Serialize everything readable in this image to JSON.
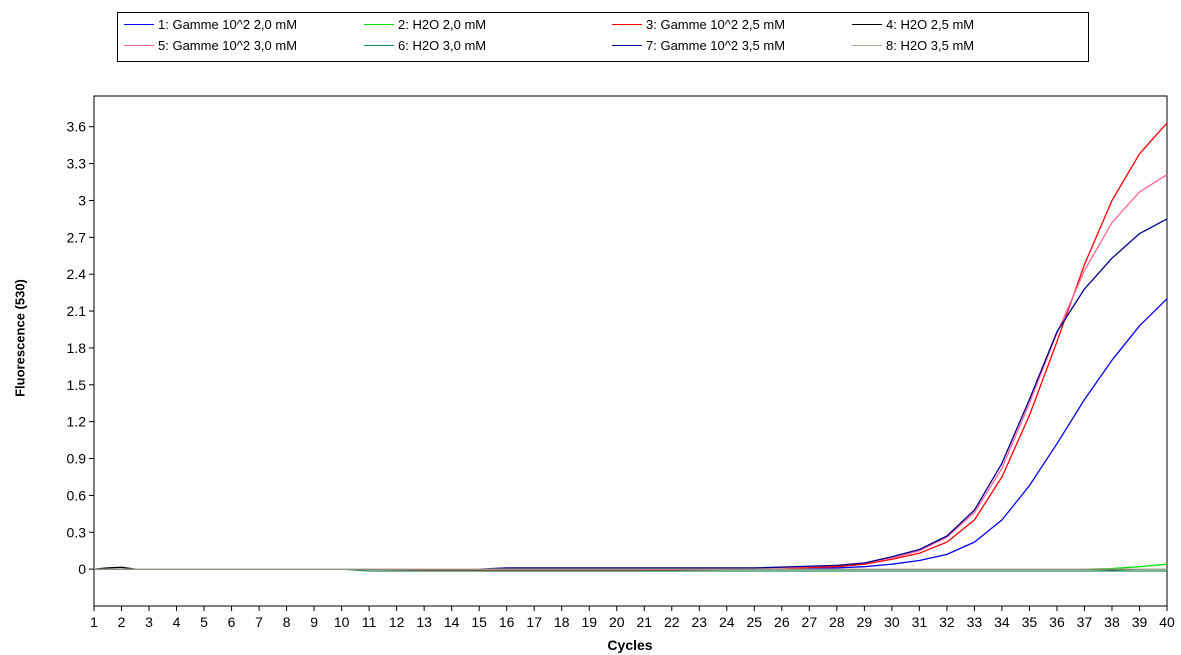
{
  "chart_data": {
    "type": "line",
    "xlabel": "Cycles",
    "ylabel": "Fluorescence (530)",
    "xlim": [
      1,
      40
    ],
    "ylim": [
      -0.3,
      3.85
    ],
    "x_ticks": [
      1,
      2,
      3,
      4,
      5,
      6,
      7,
      8,
      9,
      10,
      11,
      12,
      13,
      14,
      15,
      16,
      17,
      18,
      19,
      20,
      21,
      22,
      23,
      24,
      25,
      26,
      27,
      28,
      29,
      30,
      31,
      32,
      33,
      34,
      35,
      36,
      37,
      38,
      39,
      40
    ],
    "y_ticks": [
      0,
      0.3,
      0.6,
      0.9,
      1.2,
      1.5,
      1.8,
      2.1,
      2.4,
      2.7,
      3,
      3.3,
      3.6
    ],
    "y_tick_labels": [
      "0",
      "0.3",
      "0.6",
      "0.9",
      "1.2",
      "1.5",
      "1.8",
      "2.1",
      "2.4",
      "2.7",
      "3",
      "3.3",
      "3.6"
    ],
    "legend_position": "top",
    "series": [
      {
        "name": "1: Gamme 10^2 2,0 mM",
        "color": "#0000ff",
        "x": [
          1,
          5,
          10,
          15,
          20,
          25,
          28,
          29,
          30,
          31,
          32,
          33,
          34,
          35,
          36,
          37,
          38,
          39,
          40
        ],
        "y": [
          0,
          0,
          0,
          0,
          0,
          0,
          0.01,
          0.02,
          0.04,
          0.07,
          0.12,
          0.22,
          0.4,
          0.68,
          1.02,
          1.38,
          1.7,
          1.98,
          2.2
        ]
      },
      {
        "name": "2: H2O 2,0 mM",
        "color": "#00e000",
        "x": [
          1,
          5,
          10,
          15,
          20,
          25,
          30,
          35,
          37,
          38,
          39,
          40
        ],
        "y": [
          0,
          0,
          0,
          0,
          0,
          0,
          0,
          0,
          0,
          0.005,
          0.02,
          0.04
        ]
      },
      {
        "name": "3: Gamme 10^2 2,5 mM",
        "color": "#ff0000",
        "x": [
          1,
          5,
          10,
          15,
          20,
          25,
          28,
          29,
          30,
          31,
          32,
          33,
          34,
          35,
          36,
          37,
          38,
          39,
          40
        ],
        "y": [
          0,
          0,
          0,
          -0.01,
          -0.01,
          0,
          0.02,
          0.04,
          0.08,
          0.13,
          0.22,
          0.4,
          0.75,
          1.25,
          1.85,
          2.48,
          3.0,
          3.38,
          3.63
        ]
      },
      {
        "name": "4: H2O 2,5 mM",
        "color": "#000000",
        "x": [
          1,
          1.5,
          2,
          2.5,
          5,
          10,
          20,
          30,
          37,
          38,
          39,
          40
        ],
        "y": [
          0,
          0.01,
          0.015,
          0,
          0,
          0,
          0,
          0,
          0,
          -0.005,
          0,
          0
        ]
      },
      {
        "name": "5: Gamme 10^2 3,0 mM",
        "color": "#ff6699",
        "x": [
          1,
          5,
          10,
          15,
          20,
          25,
          28,
          29,
          30,
          31,
          32,
          33,
          34,
          35,
          36,
          37,
          38,
          39,
          40
        ],
        "y": [
          0,
          0,
          0,
          0,
          0,
          0,
          0.03,
          0.05,
          0.09,
          0.15,
          0.26,
          0.46,
          0.82,
          1.35,
          1.92,
          2.43,
          2.82,
          3.07,
          3.21
        ]
      },
      {
        "name": "6: H2O 3,0 mM",
        "color": "#1a8f5a",
        "x": [
          1,
          5,
          10,
          11,
          15,
          20,
          25,
          30,
          35,
          37,
          38,
          39,
          40
        ],
        "y": [
          0,
          0,
          0,
          -0.015,
          -0.015,
          -0.015,
          -0.015,
          -0.015,
          -0.015,
          -0.015,
          -0.015,
          -0.015,
          -0.015
        ]
      },
      {
        "name": "7: Gamme 10^2 3,5 mM",
        "color": "#000090",
        "x": [
          1,
          5,
          10,
          15,
          16,
          20,
          25,
          28,
          29,
          30,
          31,
          32,
          33,
          34,
          35,
          36,
          37,
          38,
          39,
          40
        ],
        "y": [
          0,
          0,
          0,
          0,
          0.01,
          0.01,
          0.01,
          0.03,
          0.05,
          0.1,
          0.16,
          0.27,
          0.48,
          0.86,
          1.38,
          1.93,
          2.28,
          2.53,
          2.73,
          2.85
        ]
      },
      {
        "name": "8: H2O 3,5 mM",
        "color": "#b0a890",
        "x": [
          1,
          2.5,
          4.5,
          5,
          10,
          20,
          30,
          40
        ],
        "y": [
          0,
          0,
          0,
          0,
          0,
          0,
          0,
          0
        ]
      }
    ]
  }
}
